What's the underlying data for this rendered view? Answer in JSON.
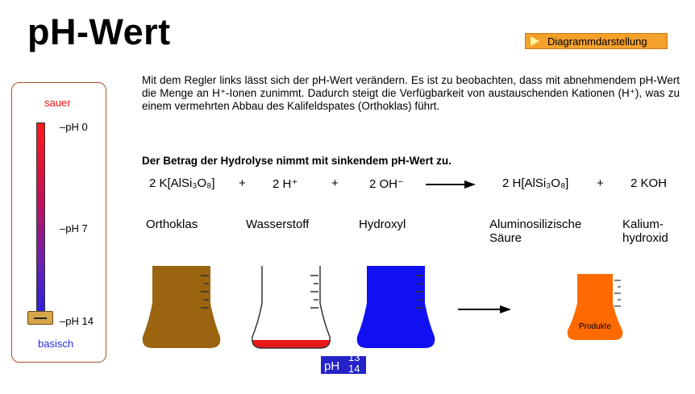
{
  "title": "pH-Wert",
  "diagram_button": "Diagrammdarstellung",
  "slider": {
    "top_label": "sauer",
    "bottom_label": "basisch",
    "ticks": [
      "pH 0",
      "pH 7",
      "pH 14"
    ],
    "value": 14,
    "colors": {
      "acid": "#ff1a1a",
      "base": "#2020e8"
    }
  },
  "description": "Mit dem Regler links lässt sich der pH-Wert verändern. Es ist zu beobachten, dass mit abnehmendem pH-Wert die Menge an H⁺-Ionen zunimmt. Dadurch steigt die Verfügbarkeit von austauschenden Kationen (H⁺), was zu einem vermehrten Abbau des Kalifeldspates (Orthoklas) führt.",
  "subtitle": "Der Betrag der Hydrolyse nimmt mit sinkendem pH-Wert zu.",
  "equation": {
    "t1": "2 K[AlSi₃O₈]",
    "plus1": "+",
    "t2": "2 H⁺",
    "plus2": "+",
    "t3": "2 OH⁻",
    "t4": "2 H[AlSi₃O₈]",
    "plus3": "+",
    "t5": "2 KOH"
  },
  "names": {
    "orthoklas": "Orthoklas",
    "wasserstoff": "Wasserstoff",
    "hydroxyl": "Hydroxyl",
    "alu_line1": "Aluminosilizische",
    "alu_line2": "Säure",
    "kalium_line1": "Kalium-",
    "kalium_line2": "hydroxid"
  },
  "beakers": {
    "orthoklas": {
      "color": "#9a6410",
      "fill": 1.0
    },
    "wasserstoff": {
      "color": "#e81818",
      "fill": 0.08
    },
    "hydroxyl": {
      "color": "#1010f0",
      "fill": 1.0
    },
    "produkte": {
      "color": "#ff6a00",
      "fill": 1.0,
      "label": "Produkte"
    }
  },
  "ph_display": {
    "prefix": "pH",
    "top": "13",
    "bottom": "14"
  }
}
